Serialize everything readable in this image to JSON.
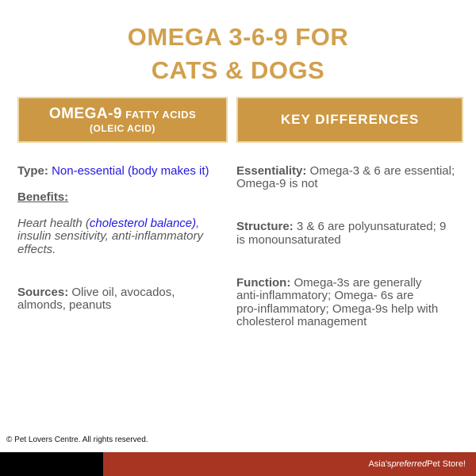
{
  "title": {
    "line1": "OMEGA 3-6-9 FOR",
    "line2": "CATS & DOGS"
  },
  "colors": {
    "gold_title": "#D1A04D",
    "gold_bar": "#CD9843",
    "link_blue": "#2219E2",
    "body_gray": "#58595B",
    "brand_red": "#A73522",
    "brand_black": "#000000"
  },
  "left_panel": {
    "header": {
      "main": "OMEGA-9",
      "suffix": "FATTY ACIDS",
      "sub": "(OLEIC ACID)"
    },
    "type_label": "Type:",
    "type_value": " Non-essential (body makes it)",
    "benefits_label": "Benefits:",
    "benefits_text_start": "Heart health (",
    "benefits_link": "cholesterol balance)",
    "benefits_text_end": ",\ninsulin sensitivity, anti-inflammatory\neffects.",
    "sources_label": "Sources:",
    "sources_value": " Olive oil, avocados,\nalmonds, peanuts"
  },
  "right_panel": {
    "header": "KEY DIFFERENCES",
    "items": [
      {
        "label": "Essentiality:",
        "text": " Omega-3 & 6 are essential;\nOmega-9 is not"
      },
      {
        "label": "Structure:",
        "text": " 3 & 6 are polyunsaturated; 9\nis monounsaturated"
      },
      {
        "label": "Function:",
        "text": " Omega-3s are generally\nanti-inflammatory; Omega- 6s are\npro-inflammatory; Omega-9s help with\ncholesterol management"
      }
    ]
  },
  "footer": {
    "copyright": "© Pet Lovers Centre. All rights reserved."
  },
  "brand_bar": {
    "text_start": "Asia's ",
    "text_italic": "preferred",
    "text_end": " Pet Store!"
  }
}
